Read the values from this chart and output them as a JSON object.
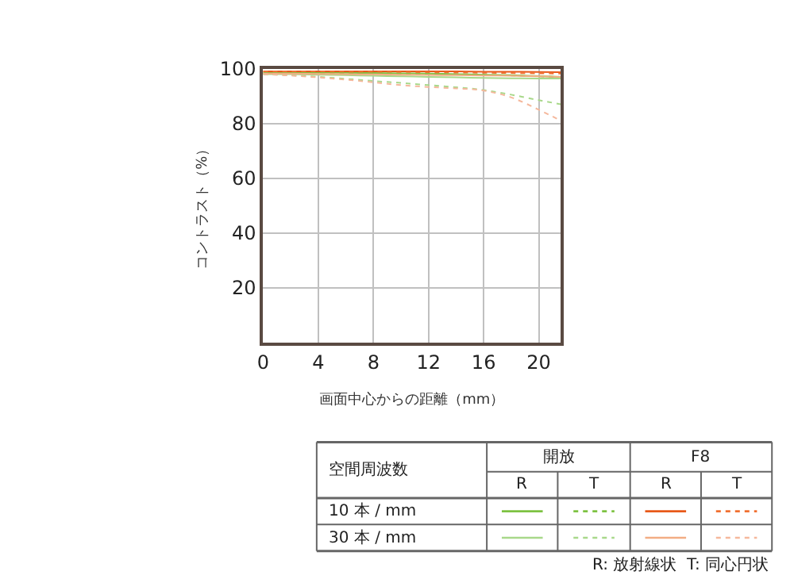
{
  "chart_data": {
    "type": "line",
    "xlabel": "画面中心からの距離（mm）",
    "ylabel": "コントラスト（%）",
    "x": [
      0,
      2,
      4,
      6,
      8,
      10,
      12,
      14,
      16,
      18,
      20,
      21.6
    ],
    "xlim": [
      0,
      21.6
    ],
    "xticks": [
      0,
      4,
      8,
      12,
      16,
      20
    ],
    "ylim": [
      0,
      100
    ],
    "yticks": [
      20,
      40,
      60,
      80,
      100
    ],
    "grid": true,
    "series": [
      {
        "color": "#7dc242",
        "line_style": "solid",
        "values": [
          98.5,
          98.5,
          98.5,
          98.5,
          98.4,
          98.3,
          98.2,
          98,
          97.8,
          97.6,
          97.3,
          97
        ]
      },
      {
        "color": "#7dc242",
        "line_style": "dotted",
        "values": [
          98.5,
          98.5,
          98.4,
          98.4,
          98.3,
          98.2,
          98,
          97.9,
          97.7,
          97.5,
          97.2,
          97
        ]
      },
      {
        "color": "#e8591a",
        "line_style": "solid",
        "values": [
          99,
          99,
          99,
          99,
          99,
          99,
          99,
          99,
          98.9,
          98.9,
          98.8,
          98.7
        ]
      },
      {
        "color": "#f07030",
        "line_style": "dotted",
        "values": [
          99,
          99,
          99,
          98.9,
          98.9,
          98.8,
          98.7,
          98.6,
          98.5,
          98.4,
          98.3,
          98.2
        ]
      },
      {
        "color": "#a8d88a",
        "line_style": "solid",
        "values": [
          98,
          98,
          97.8,
          97.6,
          97.4,
          97.2,
          97,
          96.8,
          96.6,
          96.5,
          96.4,
          96.4
        ]
      },
      {
        "color": "#a8d88a",
        "line_style": "dotted",
        "values": [
          98,
          97.6,
          97,
          96.3,
          95.5,
          94.8,
          94,
          93.2,
          92.2,
          90.5,
          88.5,
          87
        ]
      },
      {
        "color": "#f2ad84",
        "line_style": "solid",
        "values": [
          98.2,
          98.2,
          98.1,
          98,
          97.9,
          97.8,
          97.7,
          97.6,
          97.5,
          97.4,
          97.2,
          97
        ]
      },
      {
        "color": "#f5b89c",
        "line_style": "dotted",
        "values": [
          98,
          97.5,
          96.8,
          96,
          95,
          94,
          93.3,
          92.8,
          92,
          89.5,
          85,
          81
        ]
      }
    ],
    "annotations": [
      "空間周波数",
      "開放",
      "F8",
      "R",
      "T",
      "R",
      "T",
      "10 本 / mm",
      "30 本 / mm",
      "R: 放射線状  T: 同心円状"
    ]
  }
}
